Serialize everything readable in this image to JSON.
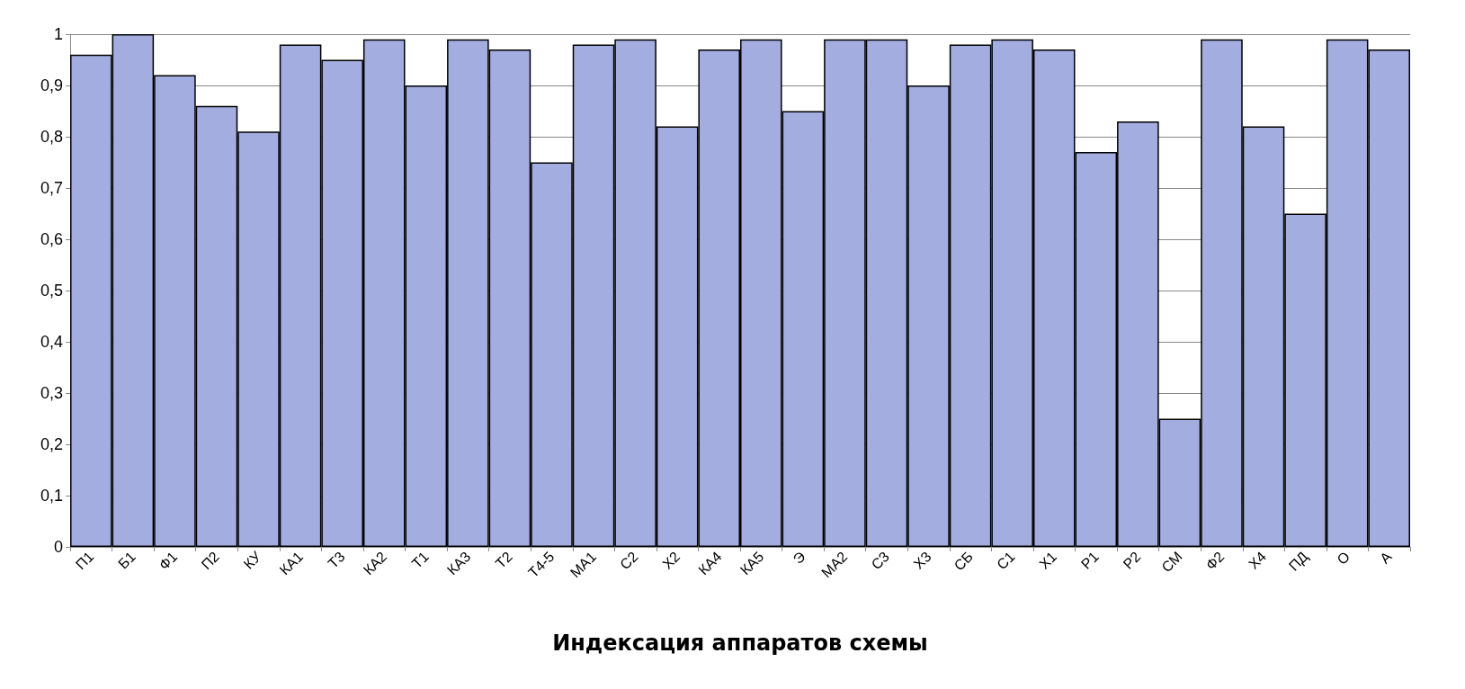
{
  "chart_data": {
    "type": "bar",
    "xlabel": "Индексация аппаратов схемы",
    "categories": [
      "П1",
      "Б1",
      "Ф1",
      "П2",
      "КУ",
      "КА1",
      "Т3",
      "КА2",
      "Т1",
      "КА3",
      "Т2",
      "Т4-5",
      "МА1",
      "С2",
      "Х2",
      "КА4",
      "КА5",
      "Э",
      "МА2",
      "С3",
      "Х3",
      "СБ",
      "С1",
      "Х1",
      "Р1",
      "Р2",
      "СМ",
      "Ф2",
      "Х4",
      "ПД",
      "О",
      "А"
    ],
    "values": [
      0.96,
      1.0,
      0.92,
      0.86,
      0.81,
      0.98,
      0.95,
      0.99,
      0.9,
      0.99,
      0.97,
      0.75,
      0.98,
      0.99,
      0.82,
      0.97,
      0.99,
      0.85,
      0.99,
      0.99,
      0.9,
      0.98,
      0.99,
      0.97,
      0.77,
      0.83,
      0.25,
      0.99,
      0.82,
      0.65,
      0.99,
      0.97
    ],
    "color": "#a3ade0",
    "ylim": [
      0,
      1
    ],
    "yticks": [
      0,
      {
        "value": 0.1,
        "label": "0,1"
      },
      {
        "value": 0.2,
        "label": "0,2"
      },
      {
        "value": 0.3,
        "label": "0,3"
      },
      {
        "value": 0.4,
        "label": "0,4"
      },
      {
        "value": 0.5,
        "label": "0,5"
      },
      {
        "value": 0.6,
        "label": "0,6"
      },
      {
        "value": 0.7,
        "label": "0,7"
      },
      {
        "value": 0.8,
        "label": "0,8"
      },
      {
        "value": 0.9,
        "label": "0,9"
      },
      1
    ],
    "grid": "y"
  }
}
